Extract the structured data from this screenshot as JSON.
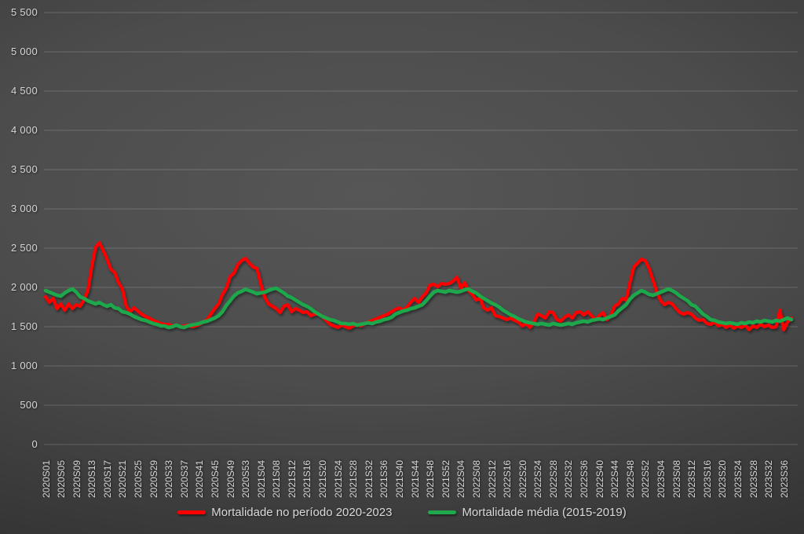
{
  "chart_data": {
    "type": "line",
    "title": "",
    "xlabel": "",
    "ylabel": "",
    "ylim": [
      0,
      5500
    ],
    "grid": "horizontal",
    "legend_position": "bottom-center",
    "background": "dark-gray-gradient",
    "y_tick_labels": [
      "0",
      "500",
      "1 000",
      "1 500",
      "2 000",
      "2 500",
      "3 000",
      "3 500",
      "4 000",
      "4 500",
      "5 000",
      "5 500"
    ],
    "x_tick_step_weeks": 4,
    "x_tick_labels": [
      "2020S01",
      "2020S05",
      "2020S09",
      "2020S13",
      "2020S17",
      "2020S21",
      "2020S25",
      "2020S29",
      "2020S33",
      "2020S37",
      "2020S41",
      "2020S45",
      "2020S49",
      "2020S53",
      "2021S04",
      "2021S08",
      "2021S12",
      "2021S16",
      "2021S20",
      "2021S24",
      "2021S28",
      "2021S32",
      "2021S36",
      "2021S40",
      "2021S44",
      "2021S48",
      "2021S52",
      "2022S04",
      "2022S08",
      "2022S12",
      "2022S16",
      "2022S20",
      "2022S24",
      "2022S28",
      "2022S32",
      "2022S36",
      "2022S40",
      "2022S44",
      "2022S48",
      "2022S52",
      "2023S04",
      "2023S08",
      "2023S12",
      "2023S16",
      "2023S20",
      "2023S24",
      "2023S28",
      "2023S32",
      "2023S36"
    ],
    "weeks_range": "2020S01 to 2023S38",
    "n_points": 195,
    "series": [
      {
        "name": "Mortalidade no período 2020-2023",
        "color": "#ff0000",
        "values": [
          1880,
          1810,
          1860,
          1730,
          1790,
          1710,
          1790,
          1730,
          1780,
          1760,
          1840,
          1960,
          2260,
          2510,
          2570,
          2470,
          2360,
          2230,
          2190,
          2060,
          1980,
          1760,
          1690,
          1740,
          1700,
          1660,
          1630,
          1610,
          1580,
          1560,
          1540,
          1530,
          1530,
          1510,
          1520,
          1500,
          1510,
          1520,
          1500,
          1510,
          1530,
          1560,
          1590,
          1660,
          1730,
          1790,
          1910,
          1990,
          2140,
          2180,
          2290,
          2340,
          2370,
          2310,
          2260,
          2240,
          2040,
          1880,
          1790,
          1760,
          1730,
          1680,
          1760,
          1780,
          1690,
          1730,
          1710,
          1680,
          1690,
          1640,
          1660,
          1660,
          1630,
          1580,
          1530,
          1510,
          1490,
          1520,
          1500,
          1480,
          1510,
          1530,
          1510,
          1540,
          1560,
          1580,
          1600,
          1620,
          1640,
          1660,
          1690,
          1720,
          1740,
          1710,
          1750,
          1810,
          1860,
          1810,
          1880,
          1930,
          2030,
          2040,
          2010,
          2050,
          2040,
          2050,
          2080,
          2130,
          1990,
          2060,
          1960,
          1910,
          1840,
          1860,
          1740,
          1710,
          1740,
          1640,
          1630,
          1610,
          1590,
          1610,
          1580,
          1560,
          1510,
          1540,
          1490,
          1560,
          1660,
          1640,
          1610,
          1690,
          1680,
          1590,
          1570,
          1620,
          1650,
          1610,
          1680,
          1690,
          1650,
          1690,
          1640,
          1590,
          1640,
          1680,
          1590,
          1640,
          1760,
          1790,
          1860,
          1840,
          2060,
          2260,
          2310,
          2360,
          2340,
          2240,
          2090,
          1940,
          1830,
          1780,
          1810,
          1790,
          1730,
          1680,
          1660,
          1680,
          1660,
          1610,
          1580,
          1590,
          1540,
          1530,
          1560,
          1510,
          1530,
          1490,
          1520,
          1480,
          1510,
          1490,
          1520,
          1460,
          1510,
          1490,
          1530,
          1500,
          1520,
          1490,
          1500,
          1710,
          1460,
          1560,
          1610
        ]
      },
      {
        "name": "Mortalidade média (2015-2019)",
        "color": "#1fa84c",
        "values": [
          1960,
          1940,
          1920,
          1900,
          1890,
          1930,
          1960,
          1980,
          1940,
          1880,
          1860,
          1830,
          1810,
          1790,
          1810,
          1780,
          1760,
          1780,
          1740,
          1730,
          1690,
          1680,
          1660,
          1630,
          1610,
          1590,
          1580,
          1560,
          1540,
          1530,
          1510,
          1510,
          1490,
          1500,
          1520,
          1500,
          1490,
          1510,
          1520,
          1530,
          1540,
          1560,
          1570,
          1590,
          1610,
          1640,
          1690,
          1770,
          1830,
          1890,
          1930,
          1950,
          1975,
          1960,
          1940,
          1920,
          1930,
          1940,
          1960,
          1980,
          1990,
          1960,
          1930,
          1890,
          1870,
          1840,
          1810,
          1780,
          1760,
          1730,
          1690,
          1660,
          1630,
          1610,
          1590,
          1580,
          1560,
          1540,
          1540,
          1530,
          1540,
          1520,
          1530,
          1540,
          1550,
          1540,
          1560,
          1570,
          1590,
          1600,
          1620,
          1660,
          1680,
          1700,
          1710,
          1730,
          1740,
          1760,
          1780,
          1830,
          1890,
          1940,
          1960,
          1950,
          1940,
          1960,
          1950,
          1940,
          1950,
          1970,
          1980,
          1950,
          1930,
          1890,
          1860,
          1830,
          1800,
          1780,
          1750,
          1710,
          1680,
          1650,
          1630,
          1600,
          1580,
          1560,
          1550,
          1540,
          1530,
          1540,
          1530,
          1520,
          1540,
          1530,
          1520,
          1530,
          1540,
          1530,
          1550,
          1560,
          1570,
          1560,
          1580,
          1590,
          1600,
          1590,
          1610,
          1630,
          1650,
          1700,
          1740,
          1780,
          1850,
          1900,
          1930,
          1960,
          1940,
          1910,
          1900,
          1920,
          1940,
          1960,
          1980,
          1960,
          1930,
          1890,
          1860,
          1830,
          1780,
          1760,
          1710,
          1660,
          1630,
          1590,
          1580,
          1560,
          1550,
          1540,
          1550,
          1540,
          1530,
          1550,
          1540,
          1560,
          1550,
          1570,
          1560,
          1580,
          1570,
          1560,
          1580,
          1570,
          1590,
          1610,
          1590
        ]
      }
    ]
  },
  "legend": {
    "items": [
      {
        "label": "Mortalidade no período 2020-2023",
        "color": "#ff0000"
      },
      {
        "label": "Mortalidade média (2015-2019)",
        "color": "#1fa84c"
      }
    ]
  }
}
